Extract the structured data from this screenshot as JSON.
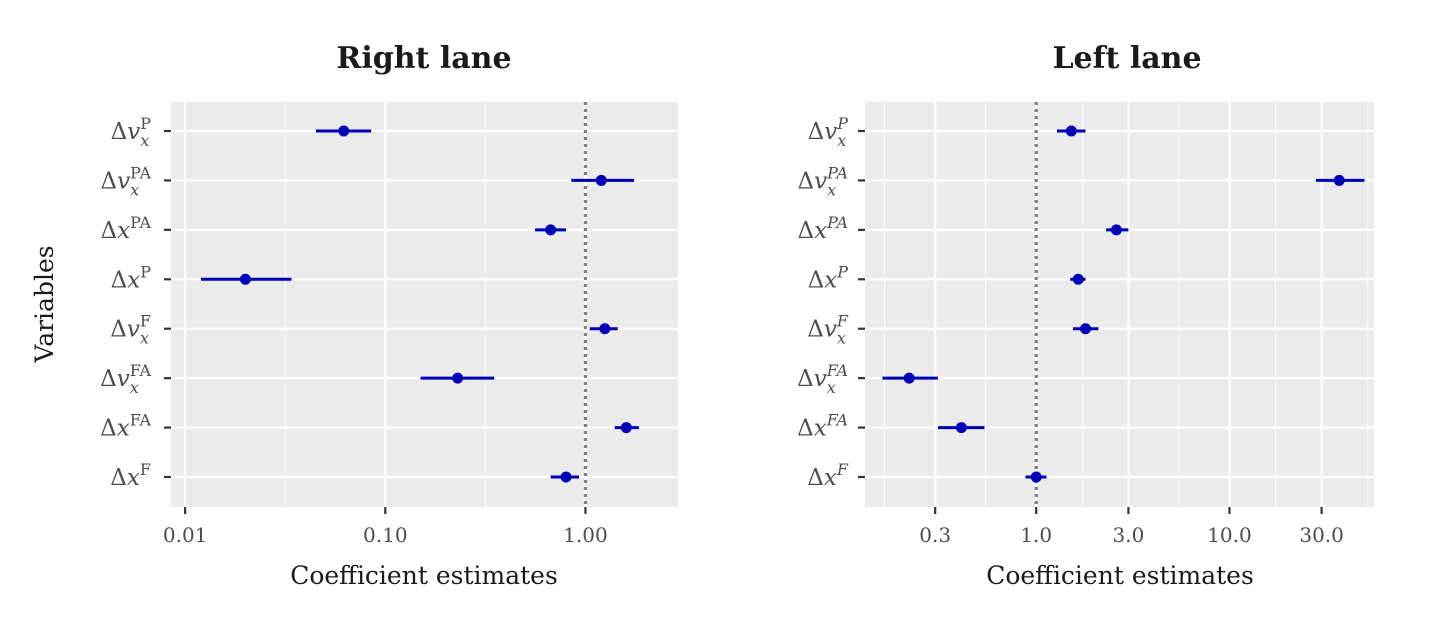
{
  "chart_data": [
    {
      "type": "scatter",
      "title": "Right lane",
      "xlabel": "Coefficient estimates",
      "ylabel": "Variables",
      "x_scale": "log",
      "xlim": [
        0.0085,
        2.9
      ],
      "x_ticks": [
        0.01,
        0.1,
        1.0
      ],
      "x_tick_labels": [
        "0.01",
        "0.10",
        "1.00"
      ],
      "reference_line": 1.0,
      "grid": true,
      "superscript_style": "upright",
      "variables": [
        {
          "base": "Δv",
          "sub": "x",
          "sup": "P",
          "estimate": 0.062,
          "lower": 0.045,
          "upper": 0.085
        },
        {
          "base": "Δv",
          "sub": "x",
          "sup": "PA",
          "estimate": 1.2,
          "lower": 0.85,
          "upper": 1.75
        },
        {
          "base": "Δx",
          "sub": "",
          "sup": "PA",
          "estimate": 0.67,
          "lower": 0.56,
          "upper": 0.8
        },
        {
          "base": "Δx",
          "sub": "",
          "sup": "P",
          "estimate": 0.02,
          "lower": 0.012,
          "upper": 0.034
        },
        {
          "base": "Δv",
          "sub": "x",
          "sup": "F",
          "estimate": 1.25,
          "lower": 1.05,
          "upper": 1.45
        },
        {
          "base": "Δv",
          "sub": "x",
          "sup": "FA",
          "estimate": 0.23,
          "lower": 0.15,
          "upper": 0.35
        },
        {
          "base": "Δx",
          "sub": "",
          "sup": "FA",
          "estimate": 1.6,
          "lower": 1.4,
          "upper": 1.85
        },
        {
          "base": "Δx",
          "sub": "",
          "sup": "F",
          "estimate": 0.8,
          "lower": 0.67,
          "upper": 0.93
        }
      ]
    },
    {
      "type": "scatter",
      "title": "Left lane",
      "xlabel": "Coefficient estimates",
      "ylabel": "",
      "x_scale": "log",
      "xlim": [
        0.13,
        56
      ],
      "x_ticks": [
        0.3,
        1.0,
        3.0,
        10.0,
        30.0
      ],
      "x_tick_labels": [
        "0.3",
        "1.0",
        "3.0",
        "10.0",
        "30.0"
      ],
      "reference_line": 1.0,
      "grid": true,
      "superscript_style": "italic",
      "variables": [
        {
          "base": "Δv",
          "sub": "x",
          "sup": "P",
          "estimate": 1.52,
          "lower": 1.28,
          "upper": 1.8
        },
        {
          "base": "Δv",
          "sub": "x",
          "sup": "PA",
          "estimate": 37,
          "lower": 28,
          "upper": 50
        },
        {
          "base": "Δx",
          "sub": "",
          "sup": "PA",
          "estimate": 2.6,
          "lower": 2.3,
          "upper": 3.0
        },
        {
          "base": "Δx",
          "sub": "",
          "sup": "P",
          "estimate": 1.65,
          "lower": 1.5,
          "upper": 1.8
        },
        {
          "base": "Δv",
          "sub": "x",
          "sup": "F",
          "estimate": 1.8,
          "lower": 1.55,
          "upper": 2.1
        },
        {
          "base": "Δv",
          "sub": "x",
          "sup": "FA",
          "estimate": 0.22,
          "lower": 0.16,
          "upper": 0.31
        },
        {
          "base": "Δx",
          "sub": "",
          "sup": "FA",
          "estimate": 0.41,
          "lower": 0.31,
          "upper": 0.54
        },
        {
          "base": "Δx",
          "sub": "",
          "sup": "F",
          "estimate": 1.0,
          "lower": 0.88,
          "upper": 1.13
        }
      ]
    }
  ],
  "colors": {
    "panel_background": "#ebebeb",
    "grid": "#ffffff",
    "estimate": "#0000b4",
    "reference_line": "#7f7f7f",
    "tick_text": "#4d4d4d",
    "label_text": "#1a1a1a"
  }
}
